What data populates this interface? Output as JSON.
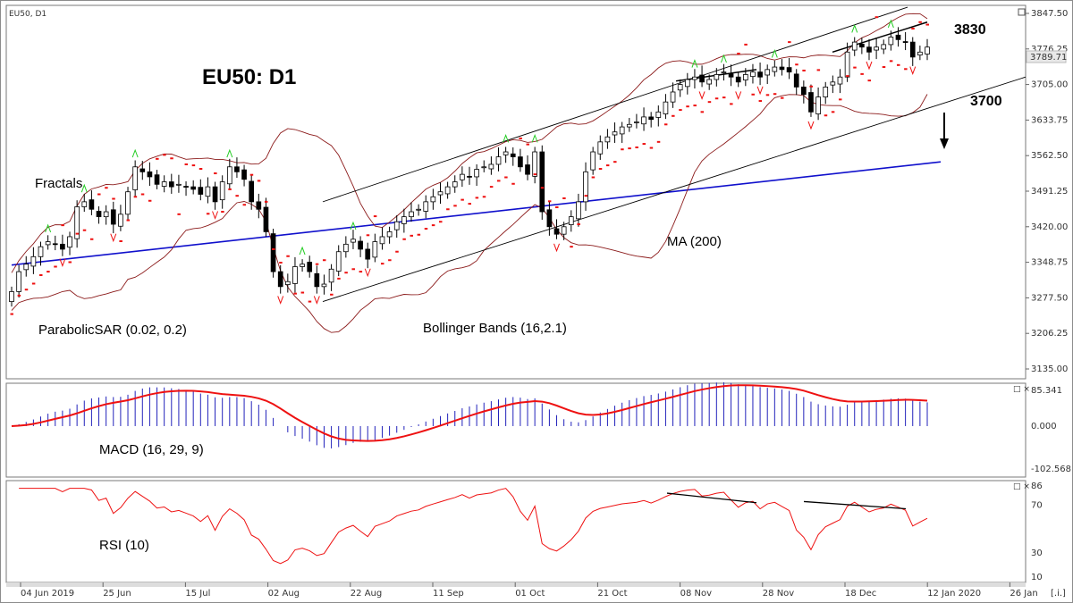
{
  "header": {
    "symbol": "EU50, D1"
  },
  "annotations": {
    "title": "EU50: D1",
    "level_high": "3830",
    "level_low": "3700",
    "fractals": "Fractals",
    "sar": "ParabolicSAR (0.02, 0.2)",
    "bollinger": "Bollinger Bands (16,2.1)",
    "ma": "MA (200)",
    "macd": "MACD (16, 29, 9)",
    "rsi": "RSI (10)",
    "price_marker": "3789.71",
    "period_button": "[.i.]"
  },
  "colors": {
    "up_candle": "#ffffff",
    "down_candle": "#000000",
    "bollinger": "#8b1a1a",
    "ma200": "#1010cc",
    "sar": "#ee1111",
    "fractal_up": "#22cc22",
    "fractal_down": "#ee1111",
    "macd_hist": "#2222bb",
    "macd_signal": "#ee1111",
    "rsi": "#ee1111",
    "trend": "#000000"
  },
  "chart_data": [
    {
      "type": "candlestick",
      "title": "EU50: D1",
      "x_tick_labels": [
        "04 Jun 2019",
        "25 Jun",
        "15 Jul",
        "02 Aug",
        "22 Aug",
        "11 Sep",
        "01 Oct",
        "21 Oct",
        "08 Nov",
        "28 Nov",
        "18 Dec",
        "12 Jan 2020",
        "26 Jan"
      ],
      "y_tick_labels": [
        "3847.50",
        "3776.25",
        "3705.00",
        "3633.75",
        "3562.50",
        "3491.25",
        "3420.00",
        "3348.75",
        "3277.50",
        "3206.25",
        "3135.00"
      ],
      "ylim": [
        3135.0,
        3847.5
      ],
      "close": [
        3290,
        3330,
        3345,
        3360,
        3380,
        3390,
        3385,
        3375,
        3400,
        3460,
        3470,
        3455,
        3440,
        3450,
        3425,
        3445,
        3490,
        3540,
        3530,
        3520,
        3505,
        3510,
        3500,
        3505,
        3500,
        3495,
        3485,
        3500,
        3470,
        3510,
        3540,
        3530,
        3515,
        3470,
        3455,
        3410,
        3330,
        3300,
        3310,
        3340,
        3345,
        3330,
        3300,
        3305,
        3335,
        3370,
        3385,
        3395,
        3375,
        3355,
        3390,
        3400,
        3410,
        3430,
        3440,
        3450,
        3455,
        3470,
        3480,
        3490,
        3500,
        3510,
        3525,
        3520,
        3535,
        3540,
        3545,
        3560,
        3570,
        3560,
        3540,
        3525,
        3570,
        3450,
        3420,
        3405,
        3420,
        3440,
        3470,
        3530,
        3570,
        3590,
        3600,
        3610,
        3620,
        3625,
        3630,
        3640,
        3635,
        3650,
        3670,
        3690,
        3705,
        3715,
        3720,
        3710,
        3715,
        3725,
        3730,
        3720,
        3710,
        3725,
        3730,
        3720,
        3735,
        3740,
        3735,
        3730,
        3700,
        3685,
        3650,
        3680,
        3700,
        3710,
        3720,
        3770,
        3790,
        3780,
        3770,
        3780,
        3785,
        3800,
        3795,
        3790,
        3760,
        3770,
        3780
      ],
      "ma200": {
        "start": 3345,
        "end": 3550
      },
      "levels": {
        "resistance": 3830,
        "support": 3700
      }
    },
    {
      "type": "line",
      "title": "MACD (16, 29, 9)",
      "y_tick_labels": [
        "85.341",
        "0.000",
        "-102.568"
      ],
      "ylim": [
        -102.568,
        85.341
      ],
      "histogram": "derived from close",
      "signal": "derived from close"
    },
    {
      "type": "line",
      "title": "RSI (10)",
      "y_tick_labels": [
        "86",
        "70",
        "30",
        "10"
      ],
      "ylim": [
        10,
        86
      ],
      "divergence_lines": 2
    }
  ]
}
